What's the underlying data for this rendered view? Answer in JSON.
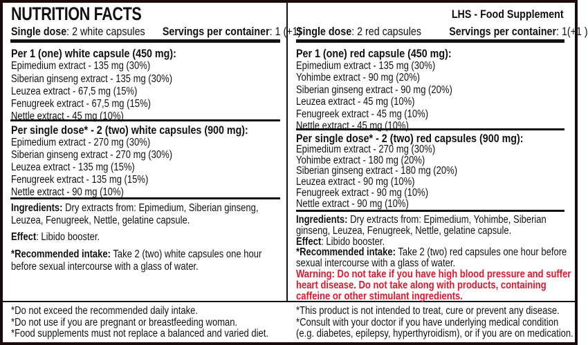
{
  "left": {
    "title": "NUTRITION FACTS",
    "single_dose_label": "Single dose",
    "single_dose_value": ": 2 white capsules",
    "servings_label": "Servings per container",
    "servings_value": ": 1 (+1)",
    "per_capsule": {
      "heading": "Per 1 (one) white capsule (450 mg):",
      "items": [
        "Epimedium extract - 135 mg (30%)",
        "Siberian ginseng extract - 135 mg (30%)",
        "Leuzea extract - 67,5 mg (15%)",
        "Fenugreek extract - 67,5 mg (15%)",
        "Nettle extract - 45 mg (10%)"
      ]
    },
    "per_dose": {
      "heading": "Per single dose* - 2 (two) white capsules (900 mg):",
      "items": [
        "Epimedium extract - 270 mg (30%)",
        "Siberian ginseng extract - 270 mg (30%)",
        "Leuzea extract - 135 mg (15%)",
        "Fenugreek extract - 135 mg (15%)",
        "Nettle extract - 90 mg (10%)"
      ]
    },
    "ingredients_label": "Ingredients:",
    "ingredients_lines": [
      " Dry extracts from: Epimedium, Siberian ginseng,",
      "Leuzea, Fenugreek, Nettle, gelatine capsule."
    ],
    "effect_label": "Effect",
    "effect_text": ": Libido booster.",
    "intake_label": "*Recommended intake:",
    "intake_lines": [
      " Take 2 (two) white capsules one hour",
      "before sexual intercourse with a glass of water."
    ],
    "footer": [
      "*Do not exceed the recommended daily intake.",
      "*Do not use if you are pregnant or breastfeeding woman.",
      "*Food supplements must not replace a balanced and varied diet."
    ]
  },
  "right": {
    "brand": "LHS - Food Supplement",
    "single_dose_label": "Single dose",
    "single_dose_value": ": 2 red capsules",
    "servings_label": "Servings per container",
    "servings_value": ": 1(+1 )",
    "per_capsule": {
      "heading": "Per 1 (one) red capsule (450 mg):",
      "items": [
        "Epimedium extract - 135 mg (30%)",
        "Yohimbe extract - 90 mg (20%)",
        "Siberian ginseng extract - 90 mg (20%)",
        "Leuzea extract - 45 mg (10%)",
        "Fenugreek extract - 45 mg (10%)",
        "Nettle extract - 45 mg (10%)"
      ]
    },
    "per_dose": {
      "heading": "Per single dose* - 2 (two) red capsules (900 mg):",
      "items": [
        "Epimedium extract - 270 mg (30%)",
        "Yohimbe extract - 180 mg (20%)",
        "Siberian ginseng extract - 180 mg (20%)",
        "Leuzea extract - 90 mg (10%)",
        "Fenugreek extract - 90 mg (10%)",
        "Nettle extract - 90 mg (10%)"
      ]
    },
    "ingredients_label": "Ingredients:",
    "ingredients_lines": [
      " Dry extracts from: Epimedium, Yohimbe, Siberian",
      "ginseng, Leuzea, Fenugreek, Nettle, gelatine capsule."
    ],
    "effect_label": "Effect",
    "effect_text": ": Libido booster.",
    "intake_label": "*Recommended intake:",
    "intake_lines": [
      " Take 2 (two) red capsules one hour before",
      "sexual intercourse with a glass of water."
    ],
    "warning_lines": [
      "Warning: Do not take if you have high blood pressure and suffer",
      "heart disease. Do not take along with products, containing",
      "caffeine or other stimulant ingredients."
    ],
    "footer": [
      "*This product is not intended to treat, cure or prevent any disease.",
      "*Consult with your doctor if you have  underlying medical condition",
      "(e.g. diabetes, epilepsy, hyperthyroidism), or if you are on medication."
    ]
  },
  "colors": {
    "warning": "#e0182d",
    "border": "#1a0a0c"
  }
}
